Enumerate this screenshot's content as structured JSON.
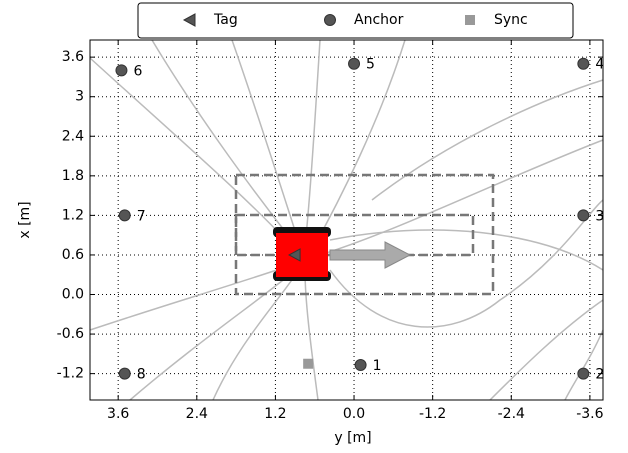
{
  "chart_data": {
    "type": "scatter",
    "xlabel": "y [m]",
    "ylabel": "x [m]",
    "xlim": [
      4.03,
      -3.8
    ],
    "ylim": [
      -1.6,
      3.86
    ],
    "xticks": [
      3.6,
      2.4,
      1.2,
      {
        "value": 0,
        "label": "0.0"
      },
      -1.2,
      -2.4,
      -3.6
    ],
    "yticks": [
      -1.2,
      -0.6,
      {
        "value": 0,
        "label": "0.0"
      },
      0.6,
      1.2,
      1.8,
      2.4,
      3.0,
      3.6
    ],
    "grid": true,
    "legend": "upper center",
    "series": [
      {
        "name": "Tag",
        "color": "#555555",
        "marker": "triangle-left",
        "x": [
          0.9
        ],
        "values": [
          0.6
        ]
      },
      {
        "name": "Anchor",
        "color": "#555555",
        "marker": "circle",
        "labels": [
          "1",
          "2",
          "3",
          "4",
          "5",
          "6",
          "7",
          "8"
        ],
        "x": [
          -0.1,
          -3.5,
          -3.5,
          -3.5,
          0.0,
          3.55,
          3.5,
          3.5
        ],
        "values": [
          -1.07,
          -1.2,
          1.2,
          3.5,
          3.5,
          3.4,
          1.2,
          -1.2
        ]
      },
      {
        "name": "Sync",
        "color": "#999999",
        "marker": "square",
        "x": [
          0.7
        ],
        "values": [
          -1.05
        ]
      }
    ]
  }
}
